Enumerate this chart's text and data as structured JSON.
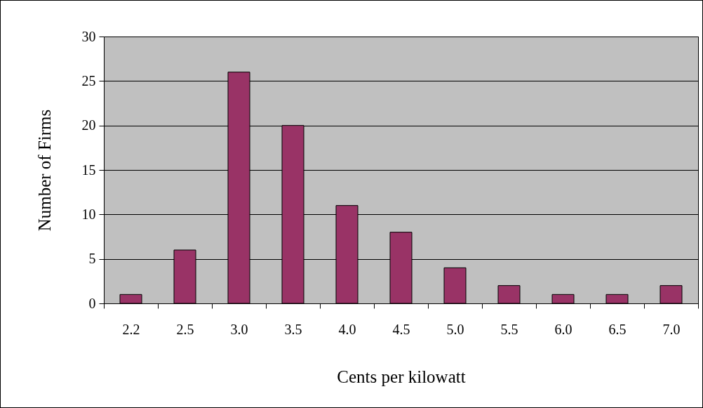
{
  "chart_data": {
    "type": "bar",
    "xlabel": "Cents per kilowatt",
    "ylabel": "Number of Firms",
    "categories": [
      "2.2",
      "2.5",
      "3.0",
      "3.5",
      "4.0",
      "4.5",
      "5.0",
      "5.5",
      "6.0",
      "6.5",
      "7.0"
    ],
    "values": [
      1,
      6,
      26,
      20,
      11,
      8,
      4,
      2,
      1,
      1,
      2
    ],
    "color": "#993366",
    "ylim": [
      0,
      30
    ],
    "yticks": [
      0,
      5,
      10,
      15,
      20,
      25,
      30
    ],
    "grid": "y"
  }
}
